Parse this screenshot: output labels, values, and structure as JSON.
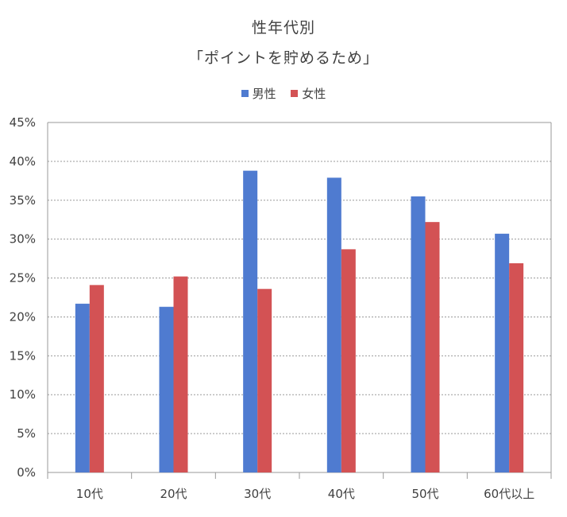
{
  "chart_data": {
    "type": "bar",
    "title": "性年代別",
    "subtitle": "「ポイントを貯めるため」",
    "categories": [
      "10代",
      "20代",
      "30代",
      "40代",
      "50代",
      "60代以上"
    ],
    "series": [
      {
        "name": "男性",
        "color": "#4F7BD0",
        "values": [
          21.7,
          21.3,
          38.8,
          37.9,
          35.5,
          30.7
        ]
      },
      {
        "name": "女性",
        "color": "#D35254",
        "values": [
          24.1,
          25.2,
          23.6,
          28.7,
          32.2,
          26.9
        ]
      }
    ],
    "y_ticks": [
      "0%",
      "5%",
      "10%",
      "15%",
      "20%",
      "25%",
      "30%",
      "35%",
      "40%",
      "45%"
    ],
    "ylim": [
      0,
      45
    ],
    "grid": true,
    "legend_position": "top-center"
  }
}
